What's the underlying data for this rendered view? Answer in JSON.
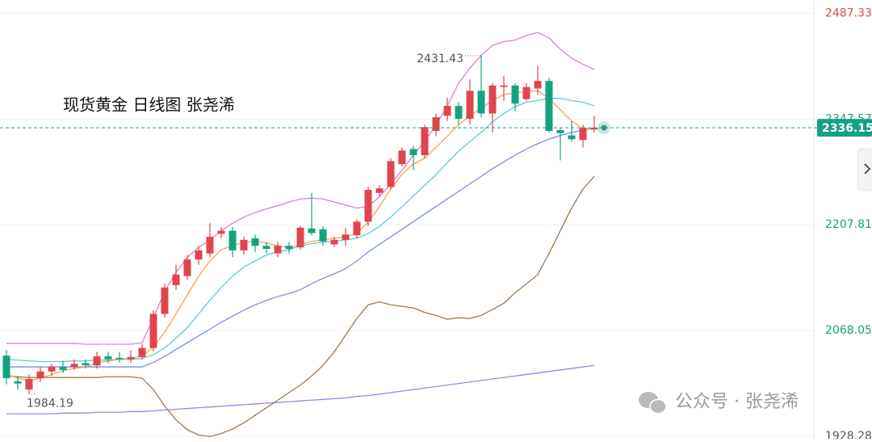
{
  "chart_data": {
    "type": "candlestick",
    "title": "现货黄金 日线图 张尧浠",
    "watermark": "公众号 · 张尧浠",
    "up_color": "#e0454f",
    "down_color": "#14a37f",
    "ylim": [
      1925,
      2505
    ],
    "yticks": [
      2487.33,
      2347.57,
      2207.81,
      2068.05,
      1928.28
    ],
    "ytick_colors": [
      "#e8474f",
      "#14a37f",
      "#14a37f",
      "#14a37f",
      "#555555"
    ],
    "grid": true,
    "last_price_color": "#17a085",
    "open": [
      2035,
      2001,
      1990,
      2005,
      2014,
      2020,
      2020,
      2025,
      2022,
      2034,
      2032,
      2030,
      2033,
      2045,
      2090,
      2128,
      2140,
      2162,
      2170,
      2196,
      2200,
      2174,
      2190,
      2180,
      2170,
      2180,
      2178,
      2203,
      2202,
      2182,
      2188,
      2194,
      2212,
      2250,
      2258,
      2288,
      2308,
      2300,
      2332,
      2352,
      2365,
      2348,
      2385,
      2355,
      2390,
      2392,
      2374,
      2388,
      2398,
      2333,
      2326,
      2320,
      2334
    ],
    "high": [
      2042,
      2008,
      2010,
      2020,
      2024,
      2028,
      2030,
      2030,
      2040,
      2040,
      2040,
      2042,
      2050,
      2095,
      2130,
      2155,
      2168,
      2180,
      2210,
      2205,
      2205,
      2192,
      2195,
      2185,
      2185,
      2185,
      2206,
      2250,
      2206,
      2192,
      2204,
      2215,
      2258,
      2260,
      2296,
      2310,
      2312,
      2340,
      2355,
      2376,
      2370,
      2400,
      2431.43,
      2395,
      2405,
      2395,
      2395,
      2418,
      2402,
      2335,
      2345,
      2340,
      2352
    ],
    "low": [
      1997,
      1990,
      1984.19,
      2000,
      2008,
      2012,
      2016,
      2018,
      2018,
      2025,
      2026,
      2025,
      2030,
      2040,
      2085,
      2122,
      2135,
      2155,
      2165,
      2190,
      2165,
      2168,
      2172,
      2170,
      2165,
      2170,
      2175,
      2194,
      2180,
      2178,
      2180,
      2190,
      2206,
      2246,
      2255,
      2285,
      2280,
      2296,
      2325,
      2345,
      2340,
      2340,
      2350,
      2330,
      2372,
      2358,
      2372,
      2380,
      2330,
      2293,
      2318,
      2310,
      2330
    ],
    "close": [
      2005,
      1998,
      2004,
      2014,
      2020,
      2016,
      2024,
      2022,
      2034,
      2030,
      2030,
      2033,
      2045,
      2090,
      2125,
      2142,
      2162,
      2174,
      2192,
      2200,
      2174,
      2188,
      2180,
      2176,
      2180,
      2176,
      2204,
      2197,
      2186,
      2188,
      2195,
      2212,
      2254,
      2256,
      2292,
      2306,
      2300,
      2337,
      2350,
      2365,
      2348,
      2385,
      2355,
      2392,
      2392,
      2368,
      2390,
      2398,
      2332,
      2329,
      2321,
      2336,
      2336.15
    ],
    "indicators": [
      {
        "color": "#8d8de8",
        "values": [
          1958,
          1958,
          1958,
          1958,
          1958,
          1959,
          1959,
          1959,
          1960,
          1960,
          1960,
          1961,
          1961,
          1962,
          1963,
          1964,
          1965,
          1966,
          1967,
          1968,
          1969,
          1970,
          1971,
          1972,
          1973,
          1974,
          1975,
          1976,
          1977,
          1978,
          1979,
          1981,
          1982,
          1984,
          1986,
          1988,
          1990,
          1992,
          1994,
          1996,
          1998,
          2000,
          2002,
          2004,
          2006,
          2008,
          2010,
          2012,
          2014,
          2016,
          2018,
          2020,
          2022
        ]
      },
      {
        "color": "#a0784f",
        "values": [
          2008,
          2007,
          2006,
          2006,
          2006,
          2006,
          2006,
          2006,
          2006,
          2007,
          2007,
          2007,
          2005,
          1990,
          1968,
          1950,
          1937,
          1930,
          1928,
          1932,
          1938,
          1946,
          1956,
          1966,
          1976,
          1986,
          1996,
          2008,
          2022,
          2040,
          2062,
          2084,
          2102,
          2106,
          2102,
          2100,
          2098,
          2092,
          2088,
          2083,
          2085,
          2084,
          2088,
          2096,
          2104,
          2118,
          2130,
          2142,
          2170,
          2200,
          2230,
          2255,
          2272
        ]
      },
      {
        "color": "#7c8ee0",
        "values": [
          2020,
          2020,
          2020,
          2020,
          2020,
          2020,
          2020,
          2020,
          2020,
          2020,
          2020,
          2020,
          2020,
          2026,
          2034,
          2043,
          2052,
          2061,
          2070,
          2079,
          2087,
          2095,
          2102,
          2108,
          2113,
          2117,
          2122,
          2130,
          2137,
          2143,
          2150,
          2160,
          2172,
          2182,
          2192,
          2202,
          2212,
          2222,
          2232,
          2242,
          2252,
          2262,
          2272,
          2282,
          2291,
          2300,
          2308,
          2315,
          2321,
          2326,
          2330,
          2333,
          2336
        ]
      },
      {
        "color": "#d97fd6",
        "values": [
          2051,
          2051,
          2051,
          2051,
          2051,
          2051,
          2051,
          2050,
          2050,
          2050,
          2050,
          2050,
          2052,
          2085,
          2120,
          2145,
          2165,
          2178,
          2188,
          2200,
          2210,
          2218,
          2224,
          2229,
          2233,
          2238,
          2242,
          2243,
          2242,
          2238,
          2234,
          2230,
          2232,
          2245,
          2262,
          2280,
          2300,
          2318,
          2340,
          2365,
          2395,
          2415,
          2432,
          2445,
          2450,
          2452,
          2458,
          2462,
          2455,
          2440,
          2428,
          2420,
          2413
        ]
      },
      {
        "color": "#5fcbd8",
        "values": [
          2030,
          2029,
          2028,
          2027,
          2027,
          2027,
          2028,
          2028,
          2029,
          2029,
          2030,
          2030,
          2031,
          2036,
          2045,
          2058,
          2072,
          2090,
          2108,
          2125,
          2140,
          2152,
          2160,
          2168,
          2172,
          2175,
          2180,
          2183,
          2185,
          2186,
          2188,
          2190,
          2196,
          2206,
          2218,
          2232,
          2246,
          2260,
          2274,
          2290,
          2305,
          2318,
          2330,
          2344,
          2355,
          2364,
          2370,
          2372,
          2375,
          2375,
          2372,
          2370,
          2365
        ]
      },
      {
        "color": "#f5a25a",
        "values": [
          2010,
          2005,
          2002,
          2005,
          2010,
          2015,
          2018,
          2020,
          2025,
          2028,
          2030,
          2031,
          2034,
          2046,
          2066,
          2090,
          2115,
          2140,
          2160,
          2175,
          2180,
          2185,
          2186,
          2184,
          2180,
          2178,
          2182,
          2186,
          2188,
          2190,
          2192,
          2196,
          2212,
          2232,
          2255,
          2275,
          2288,
          2296,
          2310,
          2325,
          2340,
          2352,
          2362,
          2372,
          2380,
          2382,
          2384,
          2385,
          2375,
          2360,
          2345,
          2335,
          2334
        ]
      }
    ]
  }
}
